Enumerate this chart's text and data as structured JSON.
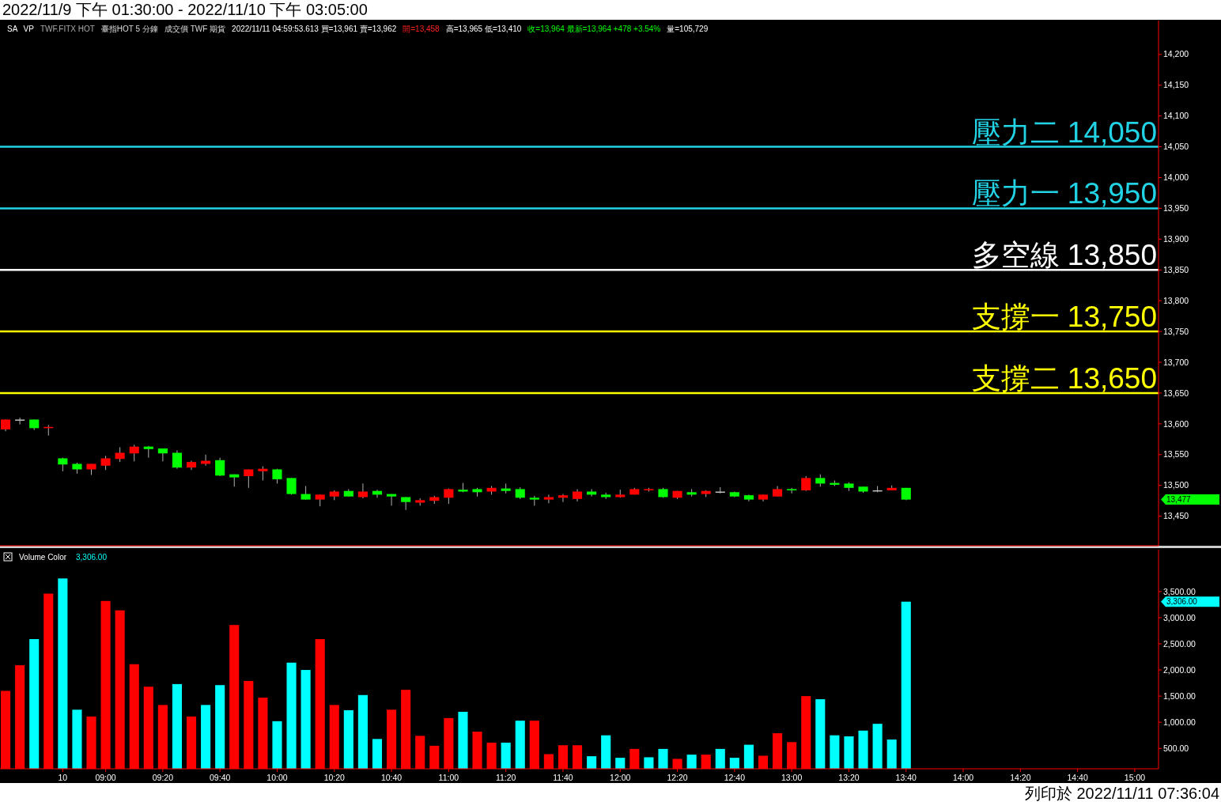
{
  "chart_data": [
    {
      "type": "candlestick",
      "title": "2022/11/9 下午 01:30:00 - 2022/11/10 下午 03:05:00",
      "categories": [
        null,
        null,
        null,
        null,
        null,
        null,
        null,
        null,
        null,
        null,
        null,
        null,
        null,
        null,
        null,
        null,
        null,
        null,
        null,
        null,
        null,
        null,
        null,
        null,
        null,
        null,
        null,
        null,
        null,
        null,
        null,
        null,
        null,
        null,
        null,
        null,
        null,
        null,
        null,
        null,
        null,
        null,
        null,
        null,
        null,
        null,
        null,
        null,
        null,
        null,
        null,
        null,
        null,
        null,
        null,
        null,
        null,
        null,
        null,
        null,
        null,
        null,
        null,
        null,
        null,
        null,
        null,
        null,
        null,
        null,
        null,
        null,
        null,
        null,
        null,
        null,
        null,
        null,
        null,
        null
      ],
      "ohlc": [
        [
          13591,
          13607,
          13588,
          13607
        ],
        [
          13607,
          13610,
          13599,
          13607
        ],
        [
          13607,
          13607,
          13590,
          13593
        ],
        [
          13593,
          13598,
          13581,
          13595
        ],
        [
          13544,
          13545,
          13523,
          13534
        ],
        [
          13535,
          13537,
          13519,
          13526
        ],
        [
          13526,
          13535,
          13517,
          13535
        ],
        [
          13532,
          13548,
          13525,
          13544
        ],
        [
          13543,
          13562,
          13538,
          13553
        ],
        [
          13552,
          13566,
          13539,
          13563
        ],
        [
          13563,
          13564,
          13545,
          13559
        ],
        [
          13560,
          13560,
          13539,
          13552
        ],
        [
          13553,
          13557,
          13527,
          13529
        ],
        [
          13529,
          13540,
          13525,
          13538
        ],
        [
          13535,
          13550,
          13532,
          13540
        ],
        [
          13541,
          13545,
          13515,
          13516
        ],
        [
          13518,
          13518,
          13498,
          13513
        ],
        [
          13515,
          13526,
          13496,
          13526
        ],
        [
          13523,
          13531,
          13508,
          13527
        ],
        [
          13526,
          13527,
          13503,
          13510
        ],
        [
          13512,
          13512,
          13485,
          13486
        ],
        [
          13486,
          13499,
          13477,
          13477
        ],
        [
          13477,
          13485,
          13466,
          13485
        ],
        [
          13482,
          13492,
          13476,
          13490
        ],
        [
          13491,
          13494,
          13482,
          13482
        ],
        [
          13481,
          13503,
          13479,
          13490
        ],
        [
          13491,
          13493,
          13480,
          13485
        ],
        [
          13486,
          13486,
          13467,
          13482
        ],
        [
          13481,
          13481,
          13460,
          13473
        ],
        [
          13472,
          13479,
          13467,
          13476
        ],
        [
          13475,
          13483,
          13470,
          13481
        ],
        [
          13480,
          13495,
          13470,
          13494
        ],
        [
          13493,
          13504,
          13489,
          13490
        ],
        [
          13494,
          13496,
          13482,
          13489
        ],
        [
          13490,
          13499,
          13485,
          13496
        ],
        [
          13495,
          13503,
          13487,
          13491
        ],
        [
          13494,
          13497,
          13478,
          13480
        ],
        [
          13480,
          13483,
          13467,
          13477
        ],
        [
          13477,
          13485,
          13471,
          13481
        ],
        [
          13480,
          13486,
          13473,
          13484
        ],
        [
          13478,
          13494,
          13474,
          13490
        ],
        [
          13490,
          13494,
          13482,
          13485
        ],
        [
          13485,
          13488,
          13478,
          13481
        ],
        [
          13481,
          13493,
          13480,
          13485
        ],
        [
          13485,
          13496,
          13485,
          13494
        ],
        [
          13492,
          13496,
          13490,
          13494
        ],
        [
          13494,
          13496,
          13480,
          13481
        ],
        [
          13480,
          13491,
          13478,
          13491
        ],
        [
          13489,
          13494,
          13482,
          13485
        ],
        [
          13486,
          13492,
          13481,
          13491
        ],
        [
          13490,
          13497,
          13487,
          13490
        ],
        [
          13489,
          13490,
          13481,
          13482
        ],
        [
          13484,
          13485,
          13474,
          13477
        ],
        [
          13477,
          13485,
          13474,
          13485
        ],
        [
          13482,
          13499,
          13482,
          13494
        ],
        [
          13494,
          13496,
          13487,
          13492
        ],
        [
          13492,
          13515,
          13491,
          13512
        ],
        [
          13512,
          13518,
          13498,
          13503
        ],
        [
          13504,
          13508,
          13499,
          13501
        ],
        [
          13503,
          13505,
          13491,
          13496
        ],
        [
          13498,
          13498,
          13488,
          13490
        ],
        [
          13492,
          13499,
          13489,
          13492
        ],
        [
          13492,
          13500,
          13492,
          13496
        ],
        [
          13496,
          13496,
          13476,
          13477
        ],
        null,
        null,
        null,
        null,
        null,
        null,
        null,
        null,
        null,
        null,
        null,
        null,
        null,
        null,
        null,
        null
      ],
      "colors": [
        "#ff0000",
        "#c0c0c0",
        "#00ff00",
        "#ff0000",
        "#00ff00",
        "#00ff00",
        "#ff0000",
        "#ff0000",
        "#ff0000",
        "#ff0000",
        "#00ff00",
        "#00ff00",
        "#00ff00",
        "#ff0000",
        "#ff0000",
        "#00ff00",
        "#00ff00",
        "#ff0000",
        "#ff0000",
        "#00ff00",
        "#00ff00",
        "#00ff00",
        "#ff0000",
        "#ff0000",
        "#00ff00",
        "#ff0000",
        "#00ff00",
        "#00ff00",
        "#00ff00",
        "#ff0000",
        "#ff0000",
        "#ff0000",
        "#00ff00",
        "#00ff00",
        "#ff0000",
        "#00ff00",
        "#00ff00",
        "#00ff00",
        "#ff0000",
        "#ff0000",
        "#ff0000",
        "#00ff00",
        "#00ff00",
        "#ff0000",
        "#ff0000",
        "#ff0000",
        "#00ff00",
        "#ff0000",
        "#00ff00",
        "#ff0000",
        "#c0c0c0",
        "#00ff00",
        "#00ff00",
        "#ff0000",
        "#ff0000",
        "#00ff00",
        "#ff0000",
        "#00ff00",
        "#00ff00",
        "#00ff00",
        "#00ff00",
        "#c0c0c0",
        "#ff0000",
        "#00ff00",
        null,
        null,
        null,
        null,
        null,
        null,
        null,
        null,
        null,
        null,
        null,
        null,
        null,
        null,
        null,
        null
      ],
      "ylim": [
        13402,
        14255
      ],
      "yticks": [
        {
          "value": 13450,
          "label": "13,450"
        },
        {
          "value": 13500,
          "label": "13,500"
        },
        {
          "value": 13550,
          "label": "13,550"
        },
        {
          "value": 13600,
          "label": "13,600"
        },
        {
          "value": 13650,
          "label": "13,650"
        },
        {
          "value": 13700,
          "label": "13,700"
        },
        {
          "value": 13750,
          "label": "13,750"
        },
        {
          "value": 13800,
          "label": "13,800"
        },
        {
          "value": 13850,
          "label": "13,850"
        },
        {
          "value": 13900,
          "label": "13,900"
        },
        {
          "value": 13950,
          "label": "13,950"
        },
        {
          "value": 14000,
          "label": "14,000"
        },
        {
          "value": 14050,
          "label": "14,050"
        },
        {
          "value": 14100,
          "label": "14,100"
        },
        {
          "value": 14150,
          "label": "14,150"
        },
        {
          "value": 14200,
          "label": "14,200"
        }
      ],
      "ref_lines": [
        {
          "axis": "y",
          "value": 14050,
          "label": "壓力二 14,050",
          "color": "#22d3e6"
        },
        {
          "axis": "y",
          "value": 13950,
          "label": "壓力一 13,950",
          "color": "#22d3e6"
        },
        {
          "axis": "y",
          "value": 13850,
          "label": "多空線 13,850",
          "color": "#ffffff"
        },
        {
          "axis": "y",
          "value": 13750,
          "label": "支撐一 13,750",
          "color": "#ffff00"
        },
        {
          "axis": "y",
          "value": 13650,
          "label": "支撐二 13,650",
          "color": "#ffff00"
        }
      ],
      "annotations": [
        "SA",
        "VP",
        "TWF.FITX HOT",
        "臺指HOT 5 分鐘",
        "成交價 TWF 期貨",
        "2022/11/11 04:59:53.613 買=13,961 賣=13,962",
        "開=13,458",
        "高=13,965 低=13,410",
        "收=13,964 最新=13,964 +478 +3.54%",
        "量=105,729",
        "13,477"
      ],
      "tick_labels": "y",
      "grid": false
    },
    {
      "type": "bar",
      "title": "Volume Color",
      "categories": [
        null,
        null,
        null,
        null,
        "10",
        null,
        null,
        "09:00",
        null,
        null,
        null,
        "09:20",
        null,
        null,
        null,
        "09:40",
        null,
        null,
        null,
        "10:00",
        null,
        null,
        null,
        "10:20",
        null,
        null,
        null,
        "10:40",
        null,
        null,
        null,
        "11:00",
        null,
        null,
        null,
        "11:20",
        null,
        null,
        null,
        "11:40",
        null,
        null,
        null,
        "12:00",
        null,
        null,
        null,
        "12:20",
        null,
        null,
        null,
        "12:40",
        null,
        null,
        null,
        "13:00",
        null,
        null,
        null,
        "13:20",
        null,
        null,
        null,
        "13:40",
        null,
        null,
        null,
        "14:00",
        null,
        null,
        null,
        "14:20",
        null,
        null,
        null,
        "14:40",
        null,
        null,
        null,
        "15:00"
      ],
      "values": [
        1600,
        2090,
        2590,
        3460,
        3750,
        1240,
        1110,
        3320,
        3140,
        2110,
        1680,
        1330,
        1730,
        1110,
        1330,
        1710,
        2860,
        1790,
        1470,
        1020,
        2140,
        2000,
        2590,
        1330,
        1230,
        1520,
        680,
        1240,
        1620,
        740,
        550,
        1080,
        1200,
        820,
        610,
        610,
        1030,
        1030,
        390,
        560,
        560,
        350,
        750,
        320,
        490,
        330,
        490,
        300,
        380,
        380,
        490,
        320,
        570,
        360,
        790,
        620,
        1500,
        1440,
        750,
        730,
        840,
        970,
        670,
        3306,
        null,
        null,
        null,
        null,
        null,
        null,
        null,
        null,
        null,
        null,
        null,
        null,
        null,
        null,
        null,
        null
      ],
      "colors": [
        "#ff0000",
        "#ff0000",
        "#00ffff",
        "#ff0000",
        "#00ffff",
        "#00ffff",
        "#ff0000",
        "#ff0000",
        "#ff0000",
        "#ff0000",
        "#ff0000",
        "#ff0000",
        "#00ffff",
        "#ff0000",
        "#00ffff",
        "#00ffff",
        "#ff0000",
        "#ff0000",
        "#ff0000",
        "#00ffff",
        "#00ffff",
        "#00ffff",
        "#ff0000",
        "#ff0000",
        "#00ffff",
        "#00ffff",
        "#00ffff",
        "#ff0000",
        "#ff0000",
        "#ff0000",
        "#ff0000",
        "#ff0000",
        "#00ffff",
        "#ff0000",
        "#ff0000",
        "#00ffff",
        "#00ffff",
        "#ff0000",
        "#ff0000",
        "#ff0000",
        "#ff0000",
        "#00ffff",
        "#00ffff",
        "#00ffff",
        "#ff0000",
        "#00ffff",
        "#00ffff",
        "#ff0000",
        "#00ffff",
        "#ff0000",
        "#00ffff",
        "#00ffff",
        "#00ffff",
        "#ff0000",
        "#ff0000",
        "#ff0000",
        "#ff0000",
        "#00ffff",
        "#00ffff",
        "#00ffff",
        "#00ffff",
        "#00ffff",
        "#00ffff",
        "#00ffff",
        null,
        null,
        null,
        null,
        null,
        null,
        null,
        null,
        null,
        null,
        null,
        null,
        null,
        null,
        null,
        null
      ],
      "ylim": [
        110,
        4300
      ],
      "yticks": [
        {
          "value": 500,
          "label": "500.00"
        },
        {
          "value": 1000,
          "label": "1,000.00"
        },
        {
          "value": 1500,
          "label": "1,500.00"
        },
        {
          "value": 2000,
          "label": "2,000.00"
        },
        {
          "value": 2500,
          "label": "2,500.00"
        },
        {
          "value": 3000,
          "label": "3,000.00"
        },
        {
          "value": 3500,
          "label": "3,500.00"
        }
      ],
      "annotations": [
        "3,306.00",
        "3,306.00",
        "列印於 2022/11/11 07:36:04"
      ],
      "grid": false
    }
  ]
}
